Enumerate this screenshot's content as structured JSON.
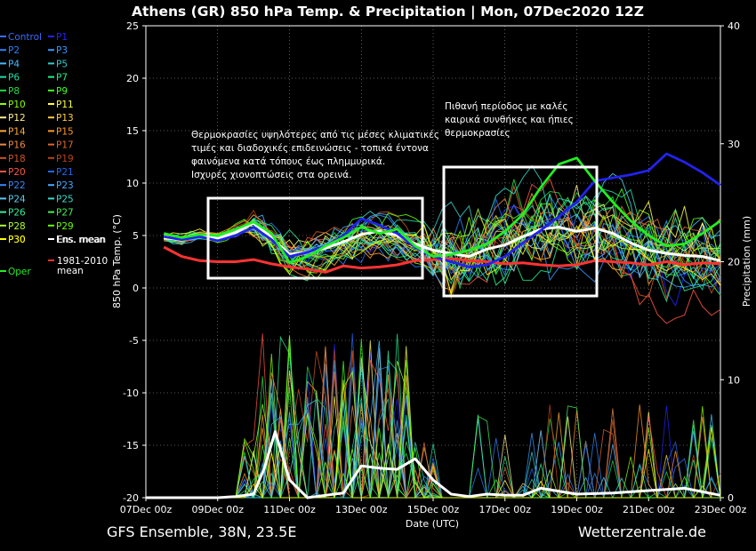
{
  "title": "Athens  (GR)  850 hPa Temp. & Precipitation | Mon, 07Dec2020 12Z",
  "footer": {
    "left": "GFS Ensemble, 38N, 23.5E",
    "right": "Wetterzentrale.de"
  },
  "annotations": {
    "box1_text": [
      "Θερμοκρασίες υψηλότερες από τις μέσες κλιματικές",
      "τιμές και διαδοχικές επιδεινώσεις - τοπικά έντονα",
      "φαινόμενα κατά τόπους έως πλημμυρικά.",
      "Ισχυρές χιονοπτώσεις στα ορεινά."
    ],
    "box2_text": [
      "Πιθανή περίοδος με καλές",
      "καιρικά συνθήκες και ήπιες",
      "θερμοκρασίες"
    ]
  },
  "legend": {
    "members": [
      {
        "label": "Control",
        "color": "#3a6cff"
      },
      {
        "label": "P1",
        "color": "#2222ff"
      },
      {
        "label": "P2",
        "color": "#2a7fff"
      },
      {
        "label": "P3",
        "color": "#3399ff"
      },
      {
        "label": "P4",
        "color": "#44bbff"
      },
      {
        "label": "P5",
        "color": "#33cccc"
      },
      {
        "label": "P6",
        "color": "#22ddaa"
      },
      {
        "label": "P7",
        "color": "#22ee88"
      },
      {
        "label": "P8",
        "color": "#22dd44"
      },
      {
        "label": "P9",
        "color": "#44ff22"
      },
      {
        "label": "P10",
        "color": "#88ff00"
      },
      {
        "label": "P11",
        "color": "#ffff44"
      },
      {
        "label": "P12",
        "color": "#ffee88"
      },
      {
        "label": "P13",
        "color": "#ffcc44"
      },
      {
        "label": "P14",
        "color": "#ffaa33"
      },
      {
        "label": "P15",
        "color": "#ff9922"
      },
      {
        "label": "P16",
        "color": "#ee8844"
      },
      {
        "label": "P17",
        "color": "#dd6633"
      },
      {
        "label": "P18",
        "color": "#cc5522"
      },
      {
        "label": "P19",
        "color": "#bb4411"
      },
      {
        "label": "P20",
        "color": "#ff5544"
      },
      {
        "label": "P21",
        "color": "#2266ee"
      },
      {
        "label": "P22",
        "color": "#3388ff"
      },
      {
        "label": "P23",
        "color": "#44aaff"
      },
      {
        "label": "P24",
        "color": "#55ccee"
      },
      {
        "label": "P25",
        "color": "#33ddcc"
      },
      {
        "label": "P26",
        "color": "#33ee99"
      },
      {
        "label": "P27",
        "color": "#44ee55"
      },
      {
        "label": "P28",
        "color": "#aaff33"
      },
      {
        "label": "P29",
        "color": "#66ff00"
      },
      {
        "label": "P30",
        "color": "#ffff00"
      },
      {
        "label": "Ens. mean",
        "color": "#ffffff"
      },
      {
        "label": "Oper",
        "color": "#22ee22"
      },
      {
        "label": "1981-2010 mean",
        "color": "#ff3333"
      }
    ]
  },
  "chart_data": {
    "type": "line",
    "xlabel": "Date (UTC)",
    "ylabel": "850 hPa Temp. (°C)",
    "y2label": "Precipitation (mm)",
    "ylim": [
      -20,
      25
    ],
    "y2lim": [
      0,
      40
    ],
    "xlim": [
      0,
      16
    ],
    "x_tick_labels": [
      "07Dec 00z",
      "09Dec 00z",
      "11Dec 00z",
      "13Dec 00z",
      "15Dec 00z",
      "17Dec 00z",
      "19Dec 00z",
      "21Dec 00z",
      "23Dec 00z"
    ],
    "x_tick_positions": [
      0,
      2,
      4,
      6,
      8,
      10,
      12,
      14,
      16
    ],
    "y_ticks": [
      -20,
      -15,
      -10,
      -5,
      0,
      5,
      10,
      15,
      20,
      25
    ],
    "y2_ticks": [
      0,
      10,
      20,
      30,
      40
    ],
    "series": [
      {
        "name": "Ens. mean",
        "color": "#ffffff",
        "axis": "temp",
        "x": [
          0.5,
          1,
          1.5,
          2,
          2.5,
          3,
          3.5,
          4,
          4.5,
          5,
          5.5,
          6,
          6.5,
          7,
          7.5,
          8,
          8.5,
          9,
          9.5,
          10,
          10.5,
          11,
          11.5,
          12,
          12.5,
          13,
          13.5,
          14,
          14.5,
          15,
          15.5,
          16
        ],
        "values": [
          4.8,
          4.6,
          5.0,
          4.7,
          5.3,
          6.2,
          4.8,
          3.2,
          3.4,
          3.8,
          4.4,
          5.1,
          5.4,
          5.0,
          4.2,
          3.6,
          3.3,
          3.0,
          3.7,
          4.1,
          4.9,
          5.6,
          5.8,
          5.4,
          5.7,
          5.2,
          4.3,
          3.6,
          3.3,
          3.1,
          3.0,
          2.6
        ]
      },
      {
        "name": "1981-2010 mean",
        "color": "#ff3333",
        "axis": "temp",
        "x": [
          0.5,
          1,
          1.5,
          2,
          2.5,
          3,
          3.5,
          4,
          4.5,
          5,
          5.5,
          6,
          6.5,
          7,
          7.5,
          8,
          8.5,
          9,
          9.5,
          10,
          10.5,
          11,
          11.5,
          12,
          12.5,
          13,
          13.5,
          14,
          14.5,
          15,
          15.5,
          16
        ],
        "values": [
          3.9,
          3.0,
          2.6,
          2.5,
          2.5,
          2.7,
          2.3,
          2.0,
          1.8,
          1.5,
          2.1,
          1.9,
          2.0,
          2.2,
          2.6,
          2.7,
          2.8,
          2.6,
          2.5,
          2.3,
          2.4,
          2.2,
          2.1,
          2.2,
          2.6,
          2.5,
          2.4,
          2.2,
          2.5,
          2.2,
          2.4,
          2.3
        ]
      },
      {
        "name": "Control",
        "color": "#2222ee",
        "axis": "temp",
        "x": [
          0.5,
          1,
          1.5,
          2,
          2.5,
          3,
          3.5,
          4,
          4.5,
          5,
          5.5,
          6,
          6.5,
          7,
          7.5,
          8,
          8.5,
          9,
          9.5,
          10,
          10.5,
          11,
          11.5,
          12,
          12.5,
          13,
          13.5,
          14,
          14.5,
          15,
          15.5,
          16
        ],
        "values": [
          4.9,
          4.6,
          4.9,
          4.5,
          5.0,
          5.8,
          4.6,
          3.0,
          3.4,
          4.0,
          5.0,
          6.6,
          6.0,
          5.2,
          3.9,
          3.0,
          2.5,
          2.0,
          2.2,
          3.0,
          4.3,
          5.5,
          6.8,
          8.2,
          10.2,
          10.5,
          10.8,
          11.2,
          12.8,
          12.0,
          11.0,
          9.8
        ]
      },
      {
        "name": "Oper",
        "color": "#22ee22",
        "axis": "temp",
        "x": [
          0.5,
          1,
          1.5,
          2,
          2.5,
          3,
          3.5,
          4,
          4.5,
          5,
          5.5,
          6,
          6.5,
          7,
          7.5,
          8,
          8.5,
          9,
          9.5,
          10,
          10.5,
          11,
          11.5,
          12,
          12.5,
          13,
          13.5,
          14,
          14.5,
          15,
          15.5,
          16
        ],
        "values": [
          5.2,
          4.8,
          5.1,
          5.0,
          5.6,
          6.3,
          5.2,
          2.4,
          3.0,
          4.0,
          4.8,
          5.8,
          5.2,
          5.6,
          4.0,
          3.0,
          3.2,
          3.6,
          4.2,
          5.4,
          7.0,
          9.6,
          11.8,
          12.4,
          10.2,
          8.2,
          6.4,
          5.0,
          4.0,
          4.2,
          5.2,
          6.4
        ]
      },
      {
        "name": "Ens. mean precip",
        "color": "#ffffff",
        "axis": "precip",
        "x": [
          0,
          1,
          2,
          2.5,
          3,
          3.3,
          3.6,
          4,
          4.5,
          5,
          5.5,
          6,
          6.5,
          7,
          7.5,
          8,
          8.5,
          9,
          9.5,
          10,
          10.5,
          11,
          12,
          13,
          14,
          15,
          16
        ],
        "values": [
          0,
          0,
          0,
          0.1,
          0.3,
          2.5,
          5.6,
          1.5,
          0,
          0.2,
          0.4,
          2.7,
          2.5,
          2.4,
          3.3,
          1.5,
          0.3,
          0.1,
          0.3,
          0.2,
          0.2,
          0.8,
          0.3,
          0.4,
          0.6,
          0.8,
          0.2
        ]
      }
    ]
  }
}
